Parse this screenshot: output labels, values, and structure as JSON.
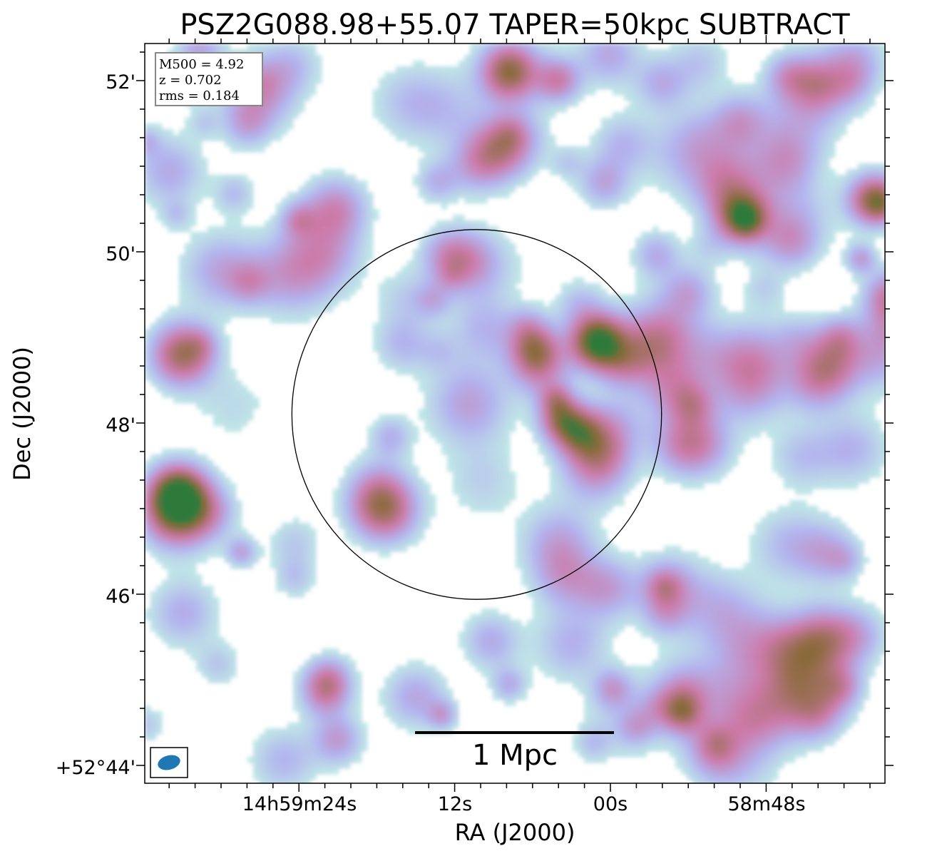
{
  "chart_data": {
    "type": "heatmap",
    "title": "PSZ2G088.98+55.07 TAPER=50kpc SUBTRACT",
    "xlabel": "RA (J2000)",
    "ylabel": "Dec (J2000)",
    "x_ticks": [
      "14h59m24s",
      "12s",
      "00s",
      "58m48s"
    ],
    "y_ticks": [
      "+52°44'",
      "46'",
      "48'",
      "50'",
      "52'"
    ],
    "info_box": [
      "M500 = 4.92",
      "z = 0.702",
      "rms = 0.184"
    ],
    "scale_bar_label": "1 Mpc",
    "colormap": [
      "#ffffff",
      "#bfe6e6",
      "#b3b3ee",
      "#cc7aa8",
      "#8a6a3a",
      "#2e7a3a"
    ],
    "circle": {
      "center_ra_s": 10.3,
      "center_dec_arcmin": 48.1,
      "radius_arcmin": 2.16
    },
    "beam_color": "#1f77b4",
    "sources": [
      {
        "ra_s": 1.0,
        "dec_arcmin": 48.95,
        "peak": 1.0,
        "sigma_arcmin": 0.22
      },
      {
        "ra_s": 5.8,
        "dec_arcmin": 48.85,
        "peak": 0.55,
        "sigma_arcmin": 0.2
      },
      {
        "ra_s": 2.5,
        "dec_arcmin": 47.9,
        "peak": 0.55,
        "sigma_arcmin": 0.2
      },
      {
        "ra_s": 33.0,
        "dec_arcmin": 48.8,
        "peak": 0.7,
        "sigma_arcmin": 0.25
      },
      {
        "ra_s": 33.3,
        "dec_arcmin": 46.95,
        "peak": 0.75,
        "sigma_arcmin": 0.28
      },
      {
        "ra_s": 33.3,
        "dec_arcmin": 47.2,
        "peak": 0.6,
        "sigma_arcmin": 0.22
      },
      {
        "ra_s": 7.8,
        "dec_arcmin": 52.1,
        "peak": 0.65,
        "sigma_arcmin": 0.22
      },
      {
        "ra_s": 8.5,
        "dec_arcmin": 51.2,
        "peak": 0.5,
        "sigma_arcmin": 0.25
      },
      {
        "ra_s": -10.0,
        "dec_arcmin": 50.45,
        "peak": 0.6,
        "sigma_arcmin": 0.22
      },
      {
        "ra_s": -20.0,
        "dec_arcmin": 50.6,
        "peak": 0.45,
        "sigma_arcmin": 0.2
      },
      {
        "ra_s": 4.0,
        "dec_arcmin": 52.0,
        "peak": 0.45,
        "sigma_arcmin": 0.18
      },
      {
        "ra_s": -21.5,
        "dec_arcmin": 49.5,
        "peak": 0.4,
        "sigma_arcmin": 0.2
      },
      {
        "ra_s": 22.0,
        "dec_arcmin": 44.85,
        "peak": 0.4,
        "sigma_arcmin": 0.2
      },
      {
        "ra_s": -17.0,
        "dec_arcmin": 48.7,
        "peak": 0.4,
        "sigma_arcmin": 0.25
      },
      {
        "ra_s": 18.0,
        "dec_arcmin": 47.0,
        "peak": 0.35,
        "sigma_arcmin": 0.25
      },
      {
        "ra_s": 4.0,
        "dec_arcmin": 46.6,
        "peak": 0.3,
        "sigma_arcmin": 0.3
      },
      {
        "ra_s": -5.0,
        "dec_arcmin": 48.4,
        "peak": 0.35,
        "sigma_arcmin": 0.25
      },
      {
        "ra_s": 28.0,
        "dec_arcmin": 51.5,
        "peak": 0.3,
        "sigma_arcmin": 0.2
      },
      {
        "ra_s": 22.0,
        "dec_arcmin": 50.0,
        "peak": 0.3,
        "sigma_arcmin": 0.3
      },
      {
        "ra_s": 15.0,
        "dec_arcmin": 44.8,
        "peak": 0.3,
        "sigma_arcmin": 0.25
      },
      {
        "ra_s": 21.0,
        "dec_arcmin": 44.3,
        "peak": 0.35,
        "sigma_arcmin": 0.2
      },
      {
        "ra_s": 0.5,
        "dec_arcmin": 50.8,
        "peak": 0.3,
        "sigma_arcmin": 0.2
      },
      {
        "ra_s": -16.0,
        "dec_arcmin": 51.9,
        "peak": 0.3,
        "sigma_arcmin": 0.3
      },
      {
        "ra_s": -22.0,
        "dec_arcmin": 49.2,
        "peak": 0.3,
        "sigma_arcmin": 0.25
      }
    ]
  }
}
